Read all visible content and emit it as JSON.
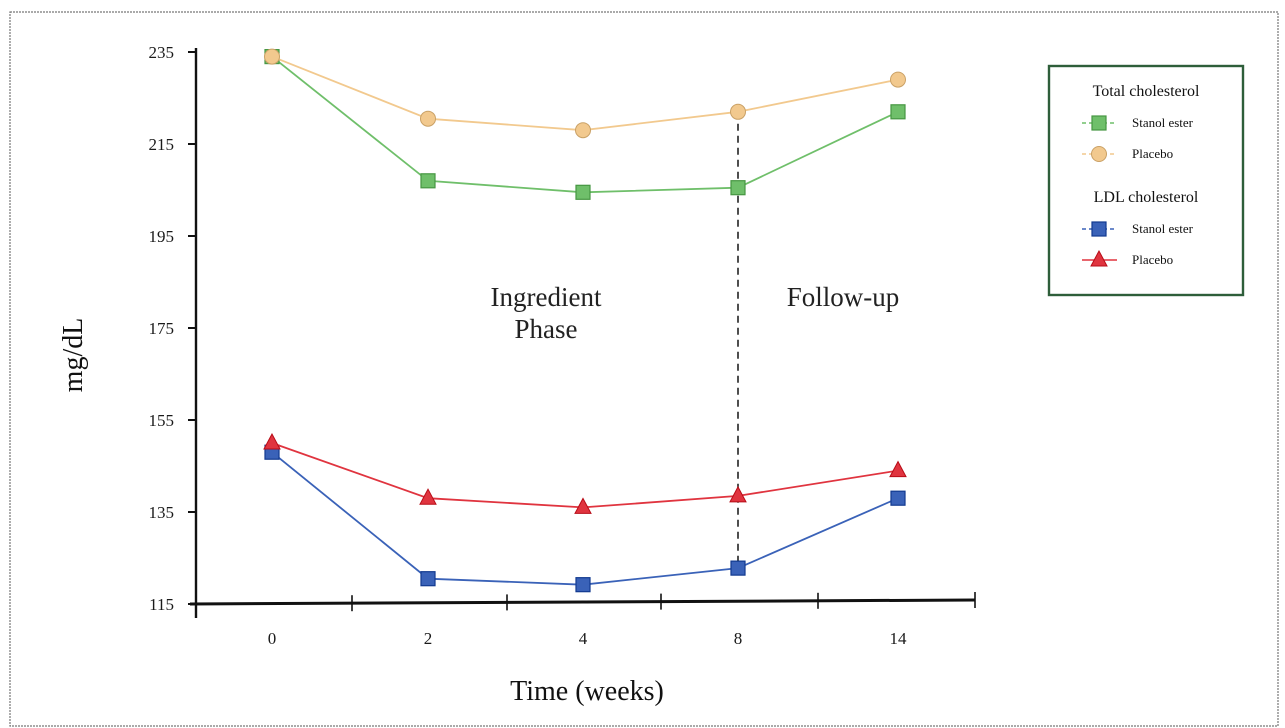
{
  "chart_data": {
    "type": "line",
    "xlabel": "Time (weeks)",
    "ylabel": "mg/dL",
    "categories": [
      "0",
      "2",
      "4",
      "8",
      "14"
    ],
    "ylim": [
      115,
      235
    ],
    "yticks": [
      115,
      135,
      155,
      175,
      195,
      215,
      235
    ],
    "grid": false,
    "legend_position": "top-right",
    "legend_groups": [
      {
        "title": "Total cholesterol",
        "entries": [
          "Stanol ester",
          "Placebo"
        ]
      },
      {
        "title": "LDL cholesterol",
        "entries": [
          "Stanol ester",
          "Placebo"
        ]
      }
    ],
    "series": [
      {
        "name": "Stanol ester",
        "group": "Total cholesterol",
        "marker": "square",
        "color": "#6fbf6a",
        "values": [
          234,
          207,
          204.5,
          205.5,
          222
        ]
      },
      {
        "name": "Placebo",
        "group": "Total cholesterol",
        "marker": "circle",
        "color": "#f2c98e",
        "values": [
          234,
          220.5,
          218,
          222,
          229
        ]
      },
      {
        "name": "Stanol ester",
        "group": "LDL cholesterol",
        "marker": "square",
        "color": "#3a62b8",
        "values": [
          148,
          120.5,
          119.2,
          122.8,
          138
        ]
      },
      {
        "name": "Placebo",
        "group": "LDL cholesterol",
        "marker": "triangle",
        "color": "#e0343f",
        "values": [
          150,
          138,
          136,
          138.5,
          144
        ]
      }
    ],
    "annotations": [
      {
        "text_lines": [
          "Ingredient",
          "Phase"
        ]
      },
      {
        "text_lines": [
          "Follow-up"
        ]
      }
    ],
    "divider_after_category": "8"
  }
}
